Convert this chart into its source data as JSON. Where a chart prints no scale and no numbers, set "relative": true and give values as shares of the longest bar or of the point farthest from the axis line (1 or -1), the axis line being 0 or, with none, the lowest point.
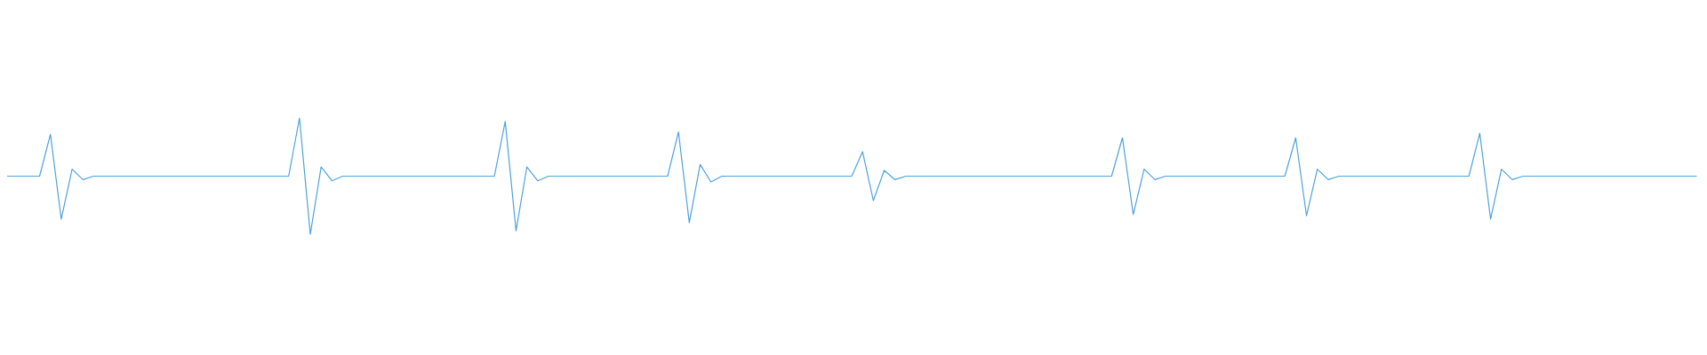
{
  "chart_data": {
    "type": "line",
    "relative": true,
    "categories": [
      null,
      null,
      null,
      null,
      null,
      null,
      null,
      null,
      null,
      null,
      null,
      null,
      null,
      null,
      null,
      null,
      null,
      null,
      null,
      null,
      null,
      null,
      null,
      null,
      null,
      null,
      null,
      null,
      null,
      null,
      null,
      null,
      null,
      null,
      null,
      null,
      null,
      null,
      null,
      null,
      null,
      null,
      null,
      null,
      null,
      null,
      null,
      null,
      null,
      null,
      null,
      null,
      null,
      null,
      null,
      null,
      null,
      null,
      null,
      null,
      null,
      null,
      null,
      null,
      null,
      null,
      null,
      null,
      null,
      null,
      null,
      null,
      null,
      null,
      null,
      null,
      null,
      null,
      null,
      null,
      null,
      null,
      null,
      null,
      null,
      null,
      null,
      null,
      null,
      null,
      null,
      null,
      null,
      null,
      null,
      null,
      null,
      null,
      null,
      null,
      null,
      null,
      null,
      null,
      null,
      null,
      null,
      null,
      null,
      null,
      null,
      null,
      null,
      null,
      null,
      null,
      null,
      null,
      null,
      null,
      null,
      null,
      null,
      null,
      null,
      null,
      null,
      null,
      null,
      null,
      null,
      null,
      null,
      null,
      null,
      null,
      null,
      null,
      null,
      null,
      null,
      null,
      null,
      null,
      null,
      null,
      null,
      null,
      null,
      null,
      null,
      null,
      null,
      null,
      null,
      null,
      null
    ],
    "series": [
      {
        "color": "#4ea3dc",
        "values": [
          0.5,
          0.5,
          0.5,
          0.5,
          0.86,
          0.13,
          0.56,
          0.47,
          0.5,
          0.5,
          0.5,
          0.5,
          0.5,
          0.5,
          0.5,
          0.5,
          0.5,
          0.5,
          0.5,
          0.5,
          0.5,
          0.5,
          0.5,
          0.5,
          0.5,
          0.5,
          0.5,
          1,
          0,
          0.58,
          0.46,
          0.5,
          0.5,
          0.5,
          0.5,
          0.5,
          0.5,
          0.5,
          0.5,
          0.5,
          0.5,
          0.5,
          0.5,
          0.5,
          0.5,
          0.5,
          0.97,
          0.03,
          0.58,
          0.46,
          0.5,
          0.5,
          0.5,
          0.5,
          0.5,
          0.5,
          0.5,
          0.5,
          0.5,
          0.5,
          0.5,
          0.5,
          0.88,
          0.1,
          0.6,
          0.45,
          0.5,
          0.5,
          0.5,
          0.5,
          0.5,
          0.5,
          0.5,
          0.5,
          0.5,
          0.5,
          0.5,
          0.5,
          0.5,
          0.71,
          0.29,
          0.55,
          0.47,
          0.5,
          0.5,
          0.5,
          0.5,
          0.5,
          0.5,
          0.5,
          0.5,
          0.5,
          0.5,
          0.5,
          0.5,
          0.5,
          0.5,
          0.5,
          0.5,
          0.5,
          0.5,
          0.5,
          0.5,
          0.83,
          0.17,
          0.56,
          0.47,
          0.5,
          0.5,
          0.5,
          0.5,
          0.5,
          0.5,
          0.5,
          0.5,
          0.5,
          0.5,
          0.5,
          0.5,
          0.83,
          0.16,
          0.56,
          0.47,
          0.5,
          0.5,
          0.5,
          0.5,
          0.5,
          0.5,
          0.5,
          0.5,
          0.5,
          0.5,
          0.5,
          0.5,
          0.5,
          0.87,
          0.13,
          0.56,
          0.47,
          0.5,
          0.5,
          0.5,
          0.5,
          0.5,
          0.5,
          0.5,
          0.5,
          0.5,
          0.5,
          0.5,
          0.5,
          0.5,
          0.5,
          0.5,
          0.5,
          0.5
        ]
      }
    ]
  }
}
